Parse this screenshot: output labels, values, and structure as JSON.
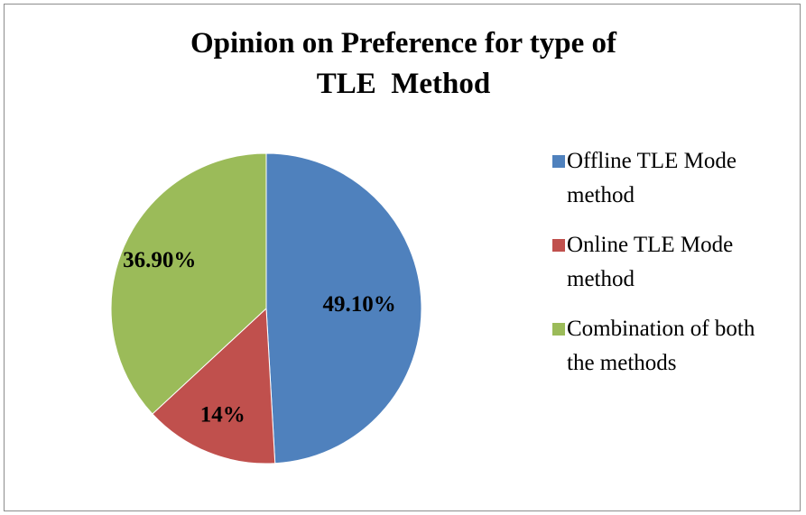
{
  "chart_data": {
    "type": "pie",
    "title": "Opinion on Preference for type of TLE  Method",
    "categories": [
      "Offline TLE Mode method",
      "Online TLE Mode method",
      "Combination of both the methods"
    ],
    "values": [
      49.1,
      14,
      36.9
    ],
    "value_labels": [
      "49.10%",
      "14%",
      "36.90%"
    ],
    "colors": [
      "#4f81bd",
      "#c0504d",
      "#9bbb59"
    ],
    "legend": "right"
  }
}
